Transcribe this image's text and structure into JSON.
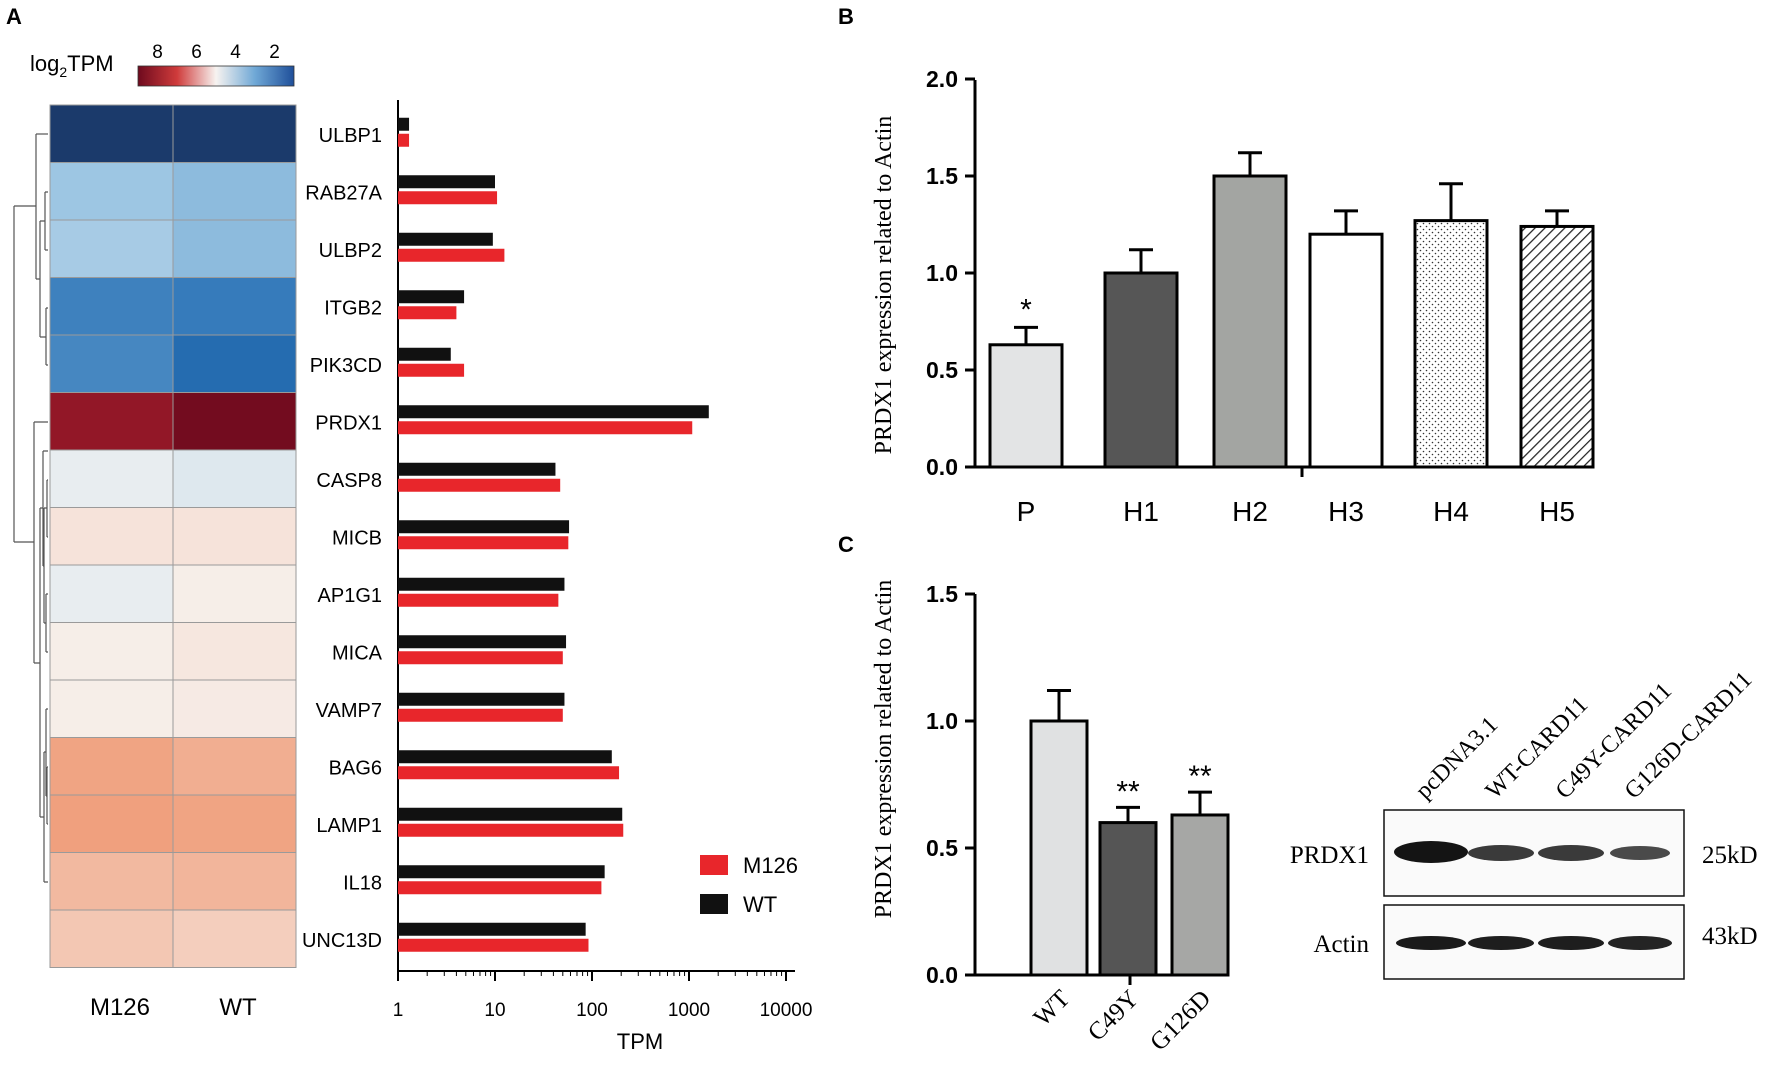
{
  "panels": {
    "a": "A",
    "b": "B",
    "c": "C"
  },
  "colors": {
    "m126": "#e8262b",
    "wt": "#111111",
    "heat_low": "#1b3a6b",
    "heat_mid": "#f7f5f2",
    "heat_high": "#6e0a1e"
  },
  "chart_data": [
    {
      "type": "heatmap",
      "title": "log2TPM",
      "colorbar": {
        "ticks": [
          8,
          6,
          4,
          2
        ],
        "range": [
          1,
          9
        ]
      },
      "columns": [
        "M126",
        "WT"
      ],
      "rows": [
        "ULBP1",
        "RAB27A",
        "ULBP2",
        "ITGB2",
        "PIK3CD",
        "PRDX1",
        "CASP8",
        "MICB",
        "AP1G1",
        "MICA",
        "VAMP7",
        "BAG6",
        "LAMP1",
        "IL18",
        "UNC13D"
      ],
      "values": [
        [
          0.5,
          0.5
        ],
        [
          3.5,
          3.3
        ],
        [
          3.7,
          3.3
        ],
        [
          2.3,
          2.2
        ],
        [
          2.4,
          1.9
        ],
        [
          10.0,
          10.6
        ],
        [
          5.0,
          4.8
        ],
        [
          5.8,
          5.8
        ],
        [
          5.0,
          5.5
        ],
        [
          5.5,
          5.7
        ],
        [
          5.5,
          5.6
        ],
        [
          7.6,
          7.3
        ],
        [
          7.7,
          7.6
        ],
        [
          7.0,
          7.1
        ],
        [
          6.6,
          6.4
        ]
      ],
      "dendrogram": "hierarchical clustering of rows"
    },
    {
      "type": "bar",
      "orientation": "horizontal",
      "xscale": "log",
      "xlabel": "TPM",
      "xticks": [
        "1",
        "10",
        "100",
        "1000",
        "10000"
      ],
      "xlim": [
        1,
        10000
      ],
      "categories": [
        "ULBP1",
        "RAB27A",
        "ULBP2",
        "ITGB2",
        "PIK3CD",
        "PRDX1",
        "CASP8",
        "MICB",
        "AP1G1",
        "MICA",
        "VAMP7",
        "BAG6",
        "LAMP1",
        "IL18",
        "UNC13D"
      ],
      "series": [
        {
          "name": "WT",
          "values": [
            1.3,
            10,
            9.5,
            4.8,
            3.5,
            1600,
            42,
            58,
            52,
            54,
            52,
            160,
            205,
            135,
            86
          ]
        },
        {
          "name": "M126",
          "values": [
            1.3,
            10.5,
            12.5,
            4,
            4.8,
            1080,
            47,
            57,
            45,
            50,
            50,
            190,
            210,
            125,
            92
          ]
        }
      ],
      "legend": [
        "M126",
        "WT"
      ],
      "legend_position": "bottom-right"
    },
    {
      "type": "bar",
      "ylabel": "PRDX1 expression related to Actin",
      "ylim": [
        0,
        2.0
      ],
      "yticks": [
        "0.0",
        "0.5",
        "1.0",
        "1.5",
        "2.0"
      ],
      "categories": [
        "P",
        "H1",
        "H2",
        "H3",
        "H4",
        "H5"
      ],
      "values": [
        0.63,
        1.0,
        1.5,
        1.2,
        1.27,
        1.24
      ],
      "errors": [
        0.09,
        0.12,
        0.12,
        0.12,
        0.19,
        0.08
      ],
      "annotations": [
        "*",
        "",
        "",
        "",
        "",
        ""
      ],
      "fills": [
        "light-gray",
        "dark-gray",
        "gray",
        "white",
        "dotted",
        "hatched"
      ]
    },
    {
      "type": "bar",
      "ylabel": "PRDX1 expression related to Actin",
      "ylim": [
        0,
        1.5
      ],
      "yticks": [
        "0.0",
        "0.5",
        "1.0",
        "1.5"
      ],
      "categories": [
        "WT",
        "C49Y",
        "G126D"
      ],
      "values": [
        1.0,
        0.6,
        0.63
      ],
      "errors": [
        0.12,
        0.06,
        0.09
      ],
      "annotations": [
        "",
        "**",
        "**"
      ]
    }
  ],
  "blot": {
    "lanes": [
      "pcDNA3.1",
      "WT-CARD11",
      "C49Y-CARD11",
      "G126D-CARD11"
    ],
    "rows": [
      {
        "label": "PRDX1",
        "size": "25kD"
      },
      {
        "label": "Actin",
        "size": "43kD"
      }
    ]
  }
}
